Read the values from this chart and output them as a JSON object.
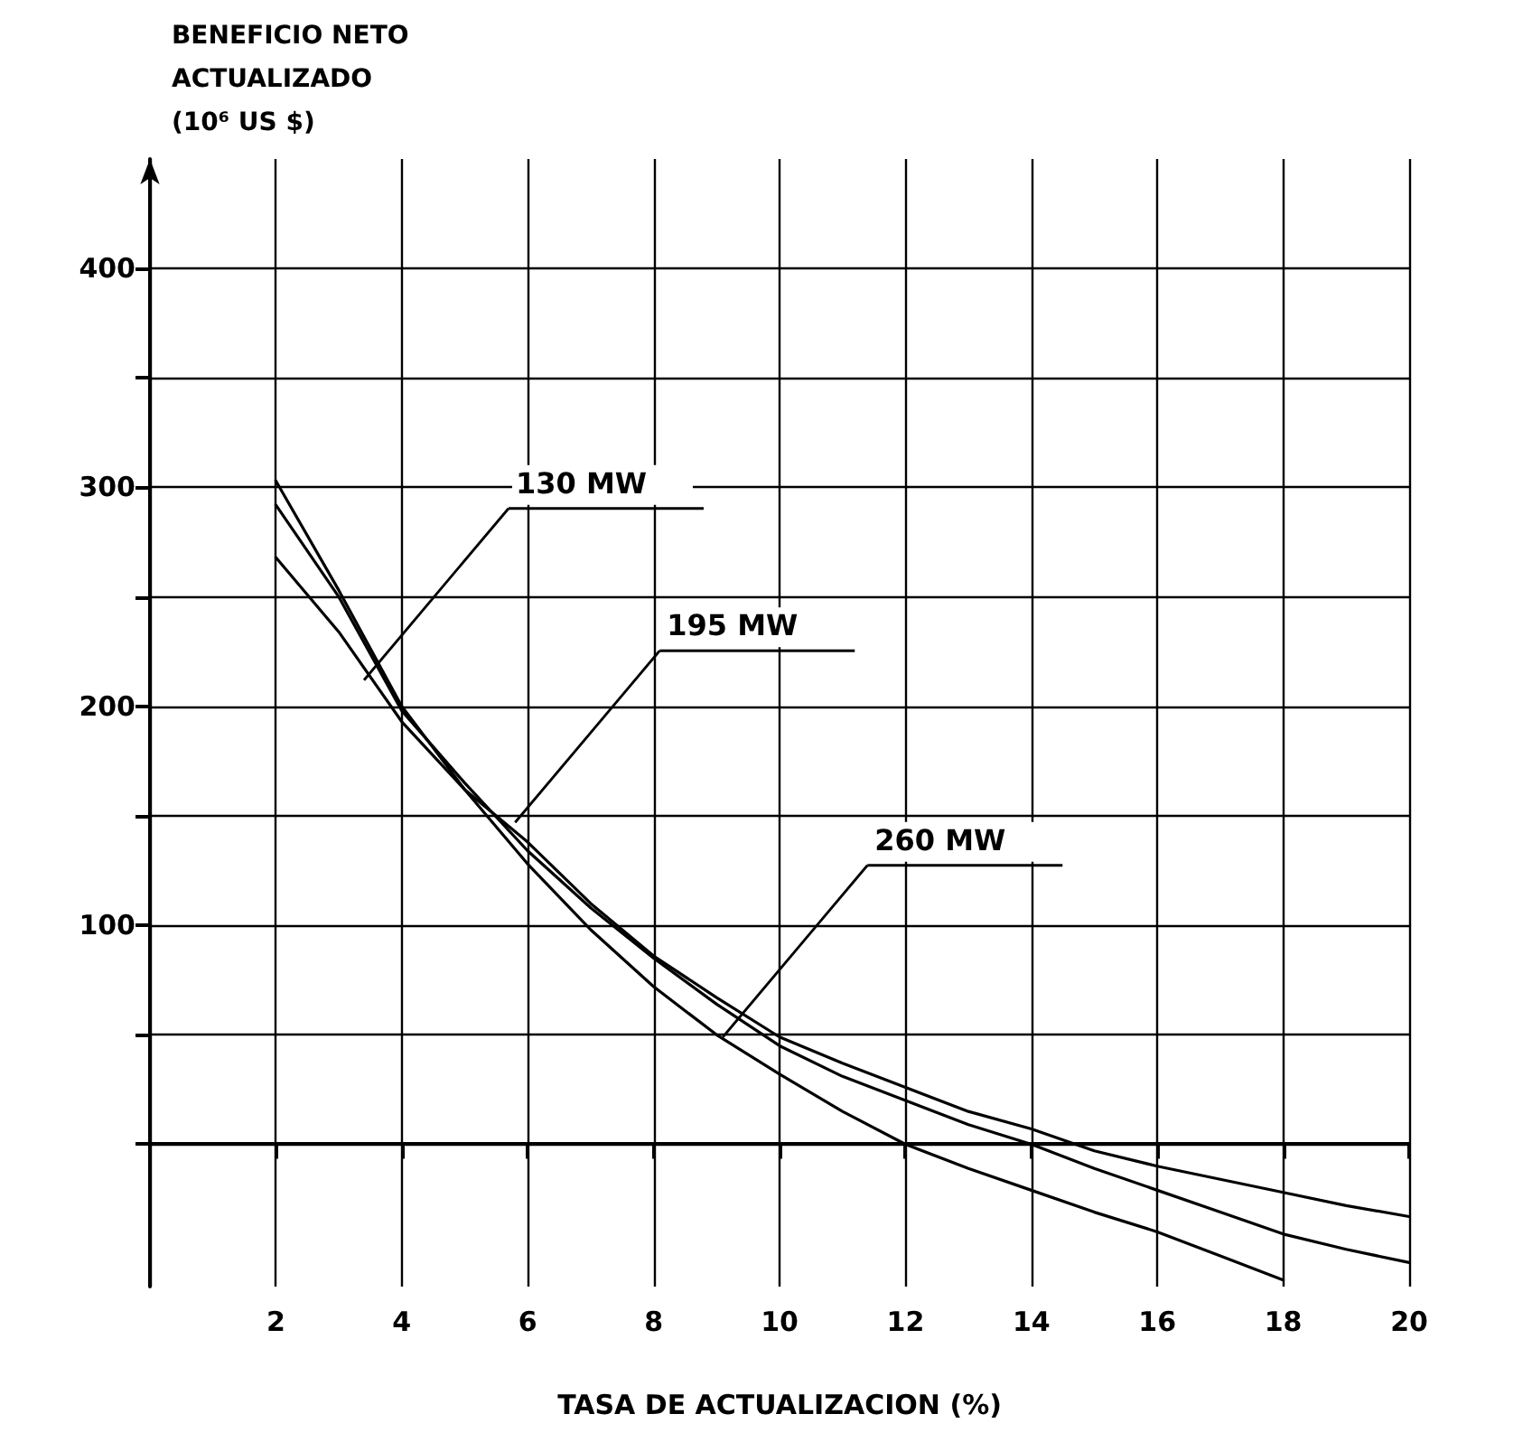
{
  "chart_data": {
    "type": "line",
    "ylabel": "BENEFICIO NETO\nACTUALIZADO\n(10⁶ US $)",
    "xlabel": "TASA DE ACTUALIZACION (%)",
    "xlim": [
      0,
      20
    ],
    "xticks": [
      {
        "value": 0,
        "label": null
      },
      2,
      4,
      6,
      8,
      10,
      12,
      14,
      16,
      18,
      20
    ],
    "ylim": [
      -65,
      450
    ],
    "yticks": [
      {
        "value": 0,
        "label": null
      },
      {
        "value": 50,
        "label": null
      },
      100,
      {
        "value": 150,
        "label": null
      },
      200,
      {
        "value": 250,
        "label": null
      },
      300,
      {
        "value": 350,
        "label": null
      },
      400
    ],
    "grid": true,
    "marker": "none",
    "line_style": "solid",
    "series": [
      {
        "color": "#000000",
        "x": [
          2,
          3,
          4,
          5,
          6,
          7,
          8,
          9,
          10,
          11,
          12,
          13,
          14,
          15,
          16,
          17,
          18,
          19,
          20
        ],
        "values": [
          268,
          234,
          193,
          162,
          138,
          110,
          86,
          67,
          49,
          37,
          26,
          15,
          7,
          -3,
          -10,
          -16,
          -22,
          -28,
          -33
        ]
      },
      {
        "color": "#000000",
        "x": [
          2,
          3,
          4,
          5,
          6,
          7,
          8,
          9,
          10,
          11,
          12,
          13,
          14,
          15,
          16,
          17,
          18,
          19,
          20
        ],
        "values": [
          292,
          250,
          198,
          165,
          134,
          108,
          85,
          64,
          45,
          31,
          20,
          9,
          0,
          -11,
          -21,
          -31,
          -41,
          -48,
          -54
        ]
      },
      {
        "color": "#000000",
        "x": [
          2,
          3,
          4,
          5,
          6,
          7,
          8,
          9,
          10,
          11,
          12,
          13,
          14,
          15,
          16,
          17,
          18
        ],
        "values": [
          303,
          253,
          200,
          162,
          128,
          98,
          72,
          50,
          32,
          15,
          0,
          -11,
          -21,
          -31,
          -40,
          -51,
          -62
        ]
      }
    ],
    "annotations": [
      {
        "text": "130 MW",
        "x": 3.4,
        "y": 212
      },
      {
        "text": "195 MW",
        "x": 5.8,
        "y": 147
      },
      {
        "text": "260 MW",
        "x": 9.1,
        "y": 49
      }
    ]
  }
}
